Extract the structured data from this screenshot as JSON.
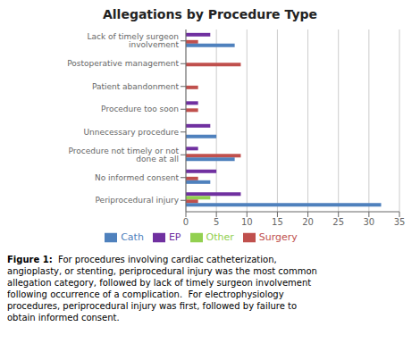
{
  "chart_data": {
    "type": "bar",
    "orientation": "horizontal",
    "title": "Allegations by Procedure Type",
    "categories": [
      "Lack of timely surgeon involvement",
      "Postoperative management",
      "Patient abandonment",
      "Procedure too soon",
      "Unnecessary procedure",
      "Procedure not timely or not done at all",
      "No informed consent",
      "Periprocedural injury"
    ],
    "series": [
      {
        "name": "EP",
        "color": "#7030a0",
        "values": [
          4,
          0,
          0,
          2,
          4,
          2,
          5,
          9
        ]
      },
      {
        "name": "Other",
        "color": "#92d050",
        "values": [
          0,
          0,
          0,
          0,
          0,
          0,
          0,
          4
        ]
      },
      {
        "name": "Surgery",
        "color": "#c0504d",
        "values": [
          2,
          9,
          2,
          2,
          0,
          9,
          2,
          2
        ]
      },
      {
        "name": "Cath",
        "color": "#4f81bd",
        "values": [
          8,
          0,
          0,
          0,
          5,
          8,
          4,
          32
        ]
      }
    ],
    "xlim": [
      0,
      35
    ],
    "xticks": [
      0,
      5,
      10,
      15,
      20,
      25,
      30,
      35
    ],
    "grid": true,
    "legend": "bottom",
    "annotations": [
      "Figure 1:",
      "  For procedures involving cardiac catheterization,\nangioplasty, or stenting, periprocedural injury was the most common\nallegation category, followed by lack of timely surgeon involvement\nfollowing occurrence of a complication.  For electrophysiology\nprocedures, periprocedural injury was first, followed by failure to\nobtain informed consent."
    ]
  }
}
